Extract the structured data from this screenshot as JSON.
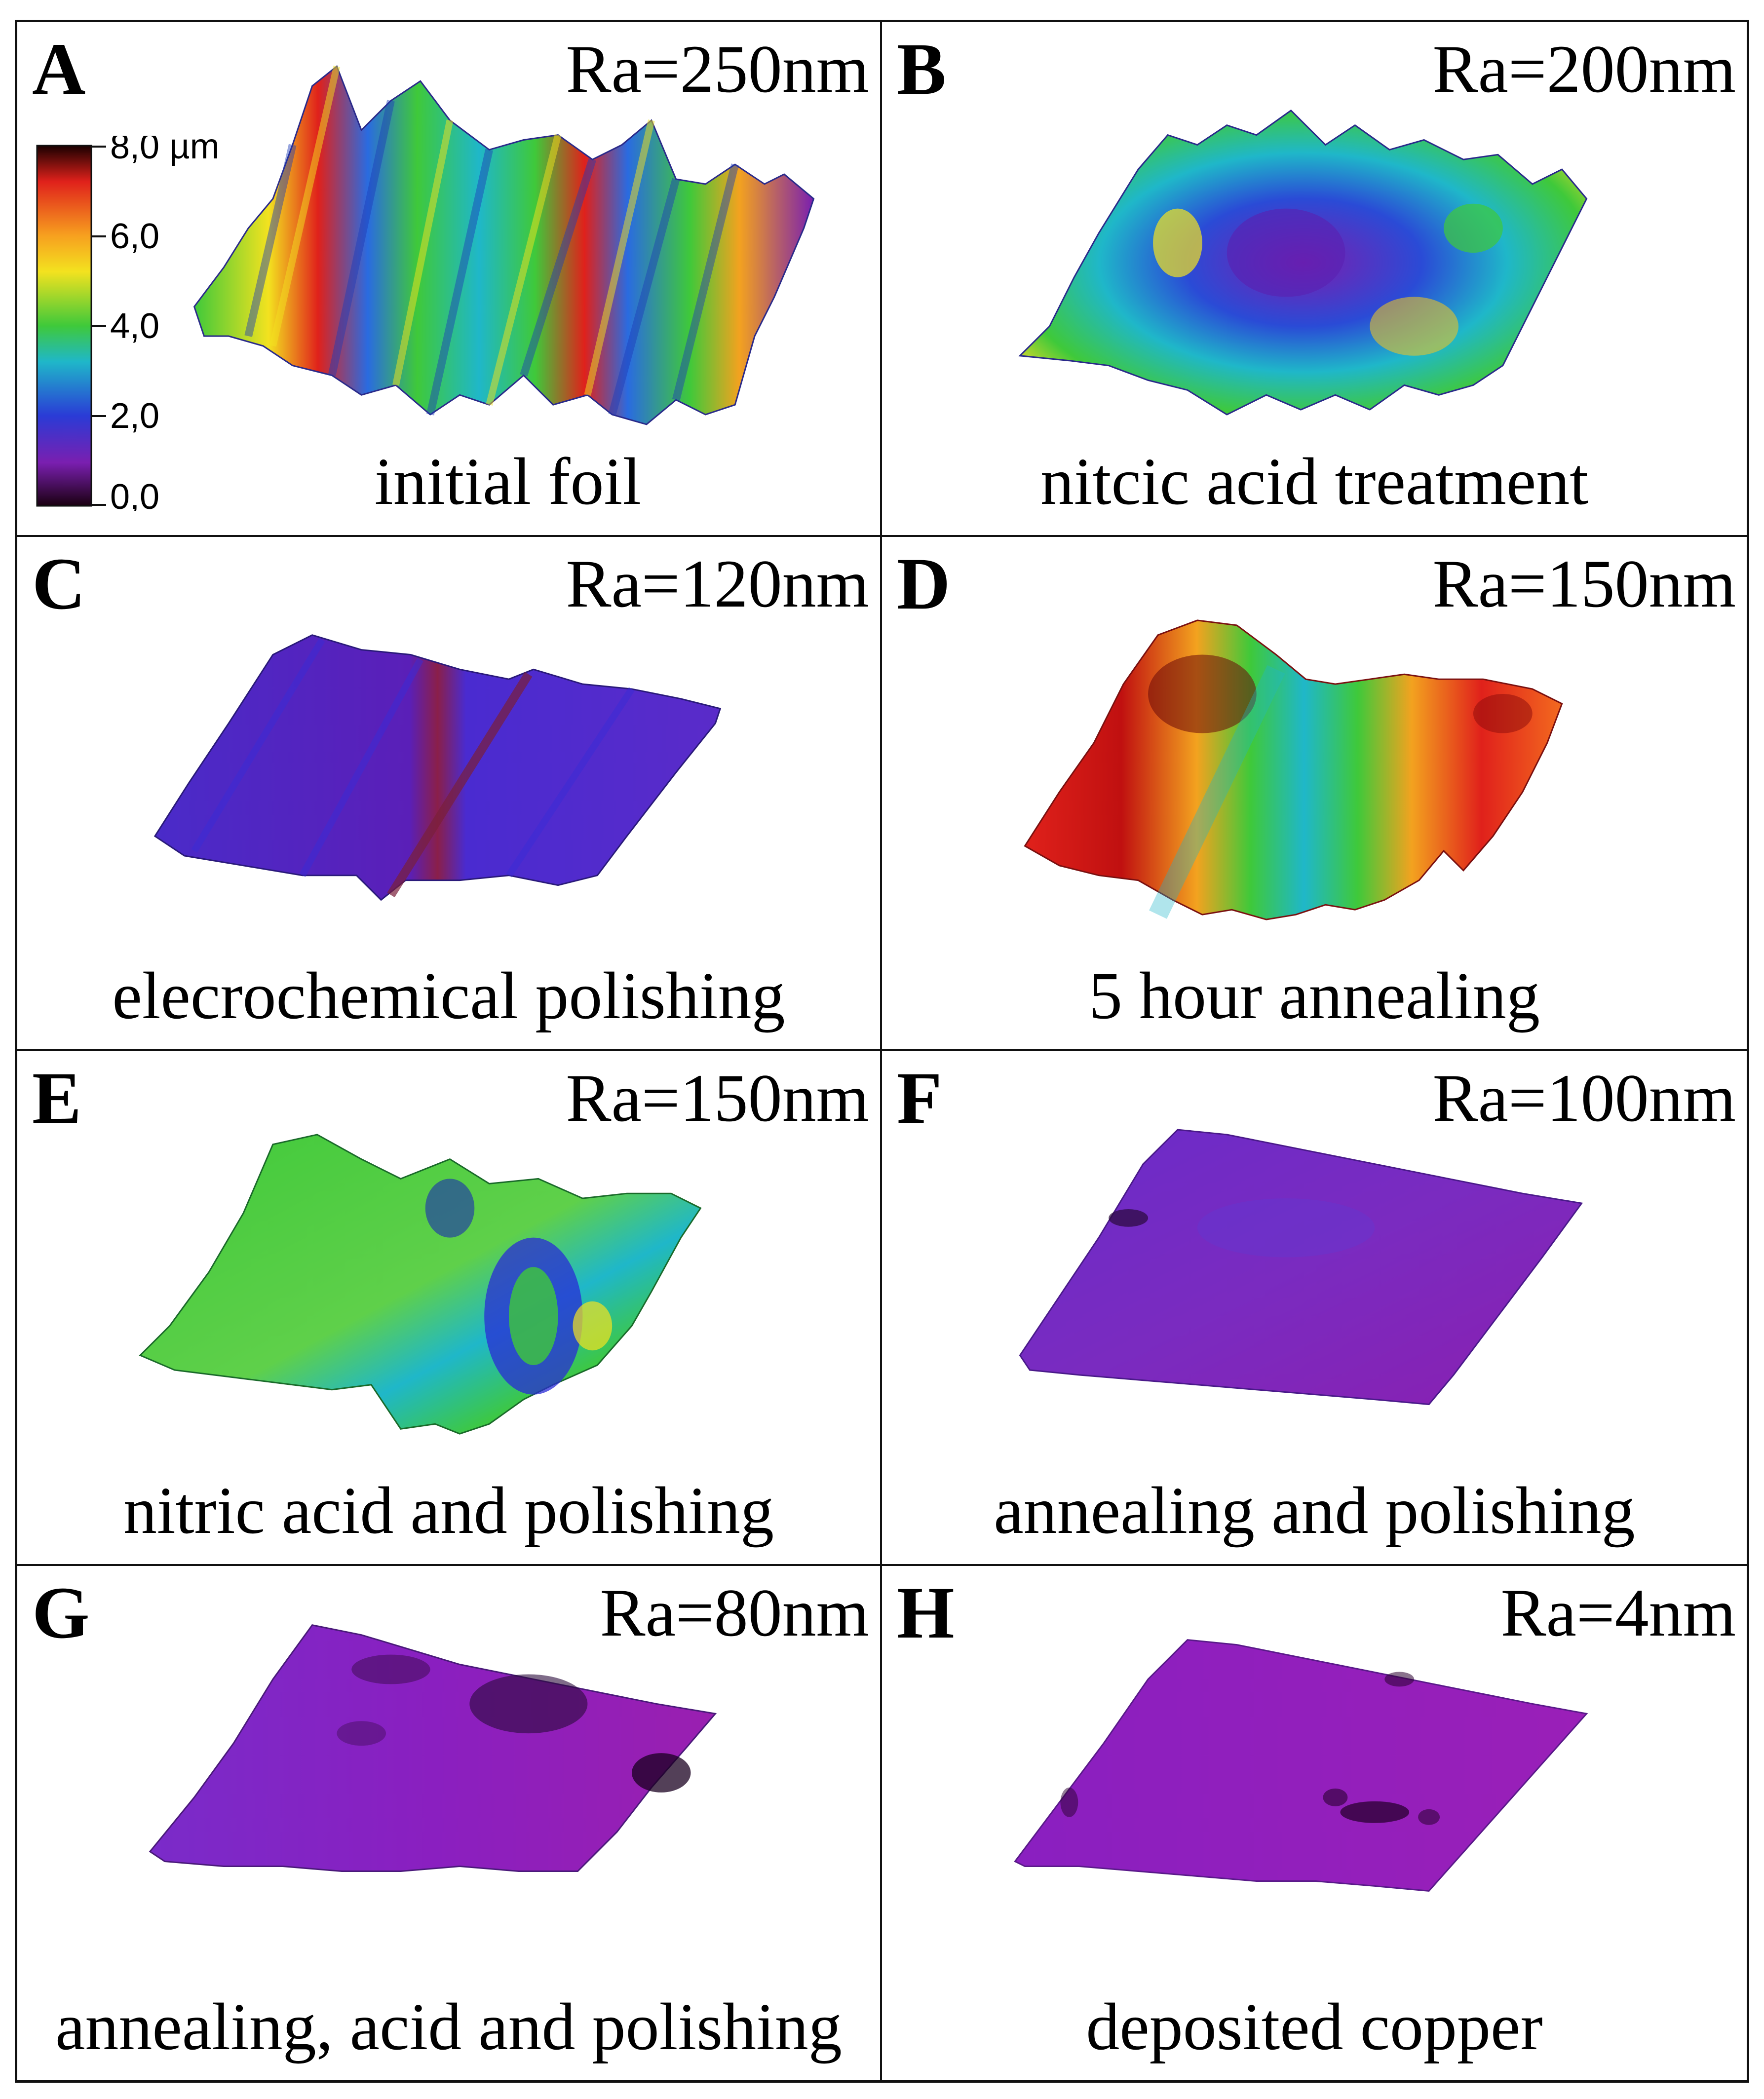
{
  "colorbar": {
    "unit_label": "8,0 µm",
    "ticks": [
      "6,0",
      "4,0",
      "2,0",
      "0,0"
    ]
  },
  "panels": [
    {
      "letter": "A",
      "ra": "Ra=250nm",
      "caption": "initial foil"
    },
    {
      "letter": "B",
      "ra": "Ra=200nm",
      "caption": "nitcic acid treatment"
    },
    {
      "letter": "C",
      "ra": "Ra=120nm",
      "caption": "elecrochemical polishing"
    },
    {
      "letter": "D",
      "ra": "Ra=150nm",
      "caption": "5 hour annealing"
    },
    {
      "letter": "E",
      "ra": "Ra=150nm",
      "caption": "nitric acid and polishing"
    },
    {
      "letter": "F",
      "ra": "Ra=100nm",
      "caption": "annealing and polishing"
    },
    {
      "letter": "G",
      "ra": "Ra=80nm",
      "caption": "annealing, acid and polishing"
    },
    {
      "letter": "H",
      "ra": "Ra=4nm",
      "caption": "deposited copper"
    }
  ],
  "colors": {
    "border": "#111111",
    "violet": "#7a1fb0",
    "blue": "#3a2bd6",
    "green": "#3fc93a",
    "red": "#e0211b"
  }
}
